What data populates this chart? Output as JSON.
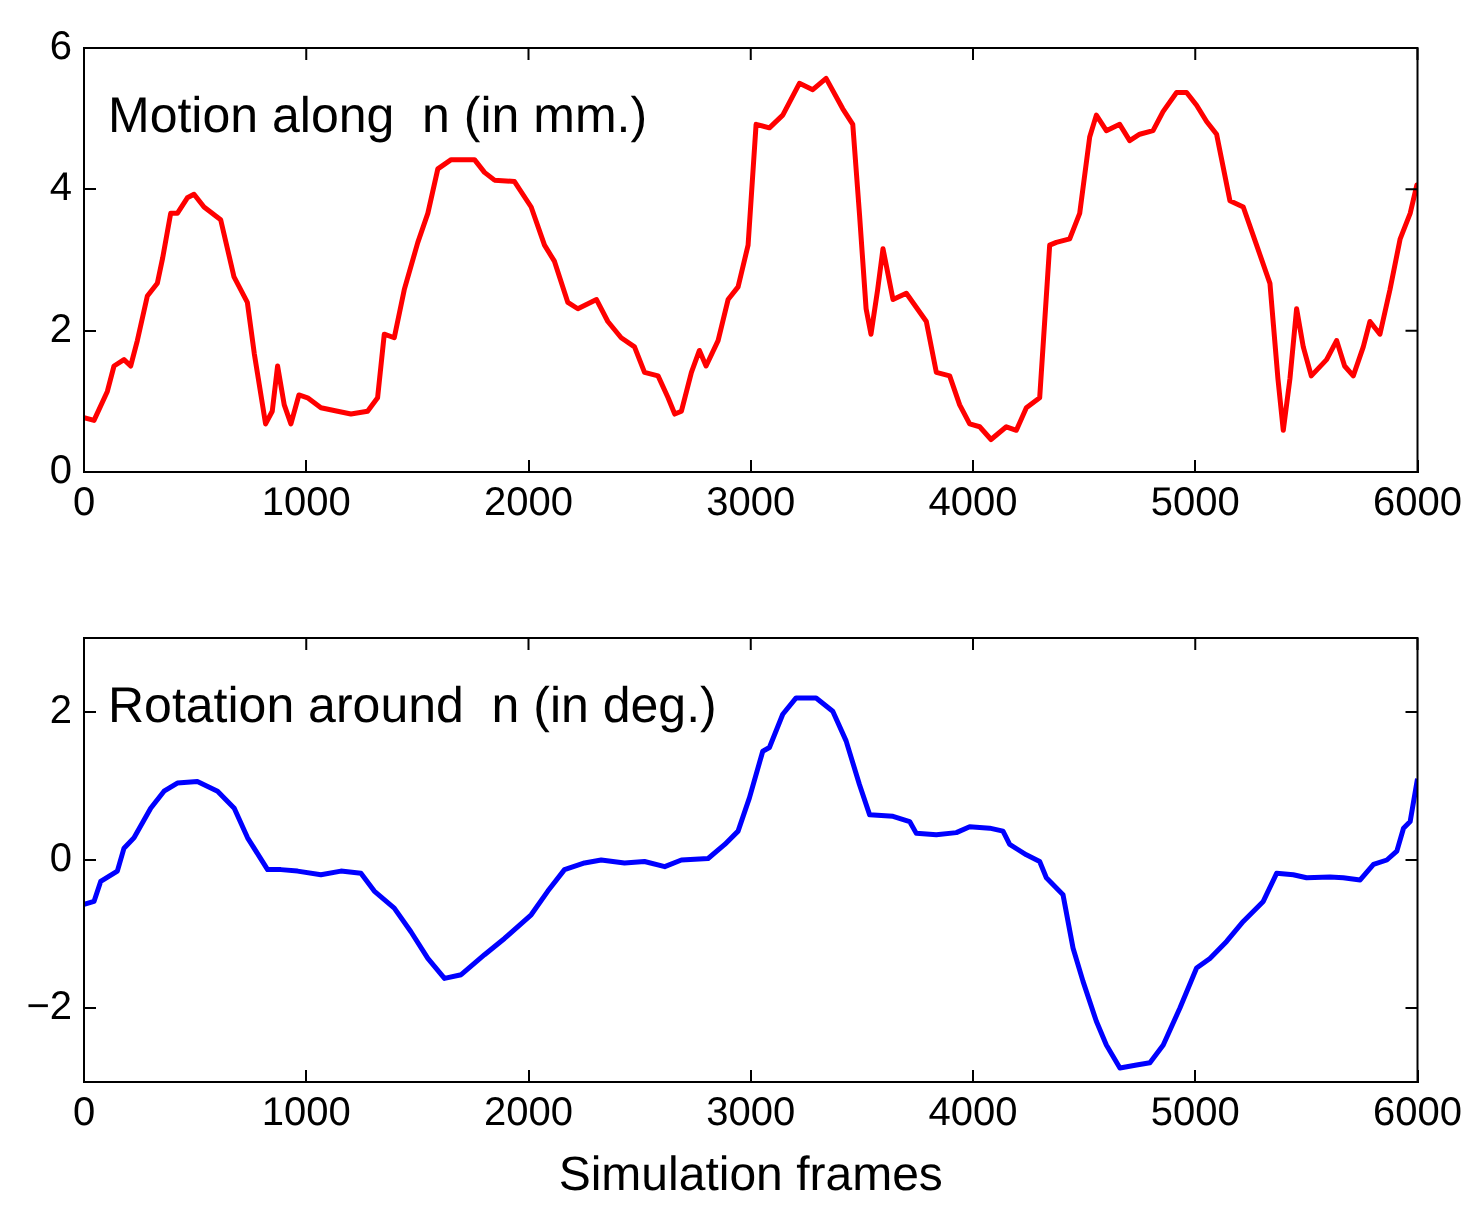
{
  "chart_data": [
    {
      "type": "line",
      "title": "Motion along  n (in mm.)",
      "x": [
        0,
        45,
        105,
        135,
        180,
        210,
        240,
        285,
        330,
        354,
        390,
        420,
        465,
        495,
        540,
        615,
        675,
        735,
        766,
        817,
        847,
        871,
        901,
        931,
        967,
        1006,
        1066,
        1141,
        1201,
        1276,
        1321,
        1351,
        1396,
        1441,
        1502,
        1547,
        1592,
        1652,
        1757,
        1802,
        1847,
        1937,
        2012,
        2072,
        2117,
        2177,
        2222,
        2306,
        2357,
        2417,
        2477,
        2522,
        2583,
        2628,
        2658,
        2688,
        2733,
        2769,
        2799,
        2853,
        2898,
        2943,
        2988,
        3024,
        3084,
        3144,
        3219,
        3279,
        3339,
        3414,
        3459,
        3489,
        3519,
        3541,
        3571,
        3595,
        3640,
        3700,
        3790,
        3835,
        3895,
        3940,
        3985,
        4030,
        4081,
        4150,
        4195,
        4240,
        4300,
        4345,
        4375,
        4435,
        4480,
        4525,
        4555,
        4600,
        4660,
        4705,
        4750,
        4810,
        4855,
        4916,
        4961,
        5006,
        5051,
        5096,
        5156,
        5216,
        5276,
        5336,
        5372,
        5396,
        5426,
        5456,
        5486,
        5522,
        5591,
        5636,
        5672,
        5711,
        5756,
        5786,
        5831,
        5876,
        5922,
        5967,
        5997,
        6000
      ],
      "series": [
        {
          "color": "#ff0000",
          "values": [
            0.77,
            0.73,
            1.14,
            1.5,
            1.59,
            1.5,
            1.86,
            2.49,
            2.67,
            3.03,
            3.66,
            3.66,
            3.88,
            3.93,
            3.75,
            3.57,
            2.76,
            2.4,
            1.68,
            0.68,
            0.86,
            1.5,
            0.95,
            0.68,
            1.09,
            1.05,
            0.91,
            0.86,
            0.82,
            0.86,
            1.05,
            1.95,
            1.9,
            2.58,
            3.25,
            3.66,
            4.29,
            4.42,
            4.42,
            4.24,
            4.13,
            4.11,
            3.75,
            3.21,
            2.98,
            2.4,
            2.31,
            2.44,
            2.13,
            1.9,
            1.77,
            1.41,
            1.36,
            1.05,
            0.82,
            0.86,
            1.41,
            1.72,
            1.5,
            1.86,
            2.44,
            2.62,
            3.21,
            4.92,
            4.87,
            5.05,
            5.5,
            5.41,
            5.57,
            5.14,
            4.92,
            3.66,
            2.31,
            1.95,
            2.58,
            3.16,
            2.44,
            2.53,
            2.13,
            1.41,
            1.36,
            0.95,
            0.68,
            0.64,
            0.46,
            0.64,
            0.59,
            0.91,
            1.05,
            3.21,
            3.25,
            3.3,
            3.66,
            4.74,
            5.05,
            4.83,
            4.92,
            4.69,
            4.78,
            4.83,
            5.1,
            5.37,
            5.37,
            5.19,
            4.96,
            4.78,
            3.84,
            3.75,
            3.21,
            2.67,
            1.32,
            0.59,
            1.32,
            2.31,
            1.77,
            1.36,
            1.59,
            1.86,
            1.5,
            1.36,
            1.77,
            2.13,
            1.95,
            2.58,
            3.3,
            3.66,
            4.06,
            4.02
          ]
        }
      ],
      "xlim": [
        0,
        6000
      ],
      "xticks": [
        0,
        1000,
        2000,
        3000,
        4000,
        5000,
        6000
      ],
      "ylim": [
        0,
        6
      ],
      "yticks": [
        0,
        2,
        4,
        6
      ]
    },
    {
      "type": "line",
      "title": "Rotation around  n (in deg.)",
      "xlabel": "Simulation frames",
      "x": [
        0,
        45,
        75,
        150,
        180,
        225,
        300,
        360,
        420,
        510,
        601,
        676,
        736,
        826,
        886,
        961,
        1066,
        1156,
        1246,
        1306,
        1396,
        1471,
        1547,
        1622,
        1697,
        1802,
        1892,
        2012,
        2087,
        2162,
        2252,
        2327,
        2432,
        2522,
        2613,
        2688,
        2808,
        2883,
        2943,
        2994,
        3054,
        3084,
        3144,
        3204,
        3294,
        3369,
        3429,
        3489,
        3535,
        3640,
        3715,
        3745,
        3835,
        3925,
        3985,
        4075,
        4135,
        4165,
        4240,
        4300,
        4330,
        4405,
        4450,
        4495,
        4555,
        4600,
        4661,
        4736,
        4796,
        4856,
        4931,
        5006,
        5066,
        5141,
        5216,
        5306,
        5366,
        5441,
        5501,
        5606,
        5666,
        5742,
        5802,
        5862,
        5907,
        5937,
        5967,
        6000
      ],
      "series": [
        {
          "color": "#0000ff",
          "values": [
            -0.6,
            -0.56,
            -0.29,
            -0.15,
            0.16,
            0.3,
            0.7,
            0.93,
            1.04,
            1.06,
            0.93,
            0.7,
            0.3,
            -0.13,
            -0.13,
            -0.15,
            -0.2,
            -0.15,
            -0.18,
            -0.42,
            -0.65,
            -0.97,
            -1.33,
            -1.6,
            -1.55,
            -1.28,
            -1.06,
            -0.74,
            -0.42,
            -0.13,
            -0.04,
            0,
            -0.04,
            -0.02,
            -0.09,
            0,
            0.02,
            0.21,
            0.39,
            0.84,
            1.47,
            1.52,
            1.97,
            2.19,
            2.19,
            2.01,
            1.61,
            1.02,
            0.61,
            0.59,
            0.52,
            0.36,
            0.34,
            0.37,
            0.45,
            0.43,
            0.39,
            0.21,
            0.07,
            -0.02,
            -0.24,
            -0.47,
            -1.19,
            -1.64,
            -2.18,
            -2.5,
            -2.81,
            -2.77,
            -2.74,
            -2.5,
            -2.0,
            -1.46,
            -1.33,
            -1.1,
            -0.83,
            -0.56,
            -0.18,
            -0.2,
            -0.24,
            -0.23,
            -0.24,
            -0.27,
            -0.06,
            0,
            0.12,
            0.43,
            0.52,
            1.1
          ]
        }
      ],
      "xlim": [
        0,
        6000
      ],
      "xticks": [
        0,
        1000,
        2000,
        3000,
        4000,
        5000,
        6000
      ],
      "ylim": [
        -3,
        3
      ],
      "yticks": [
        -2,
        0,
        2
      ]
    }
  ]
}
